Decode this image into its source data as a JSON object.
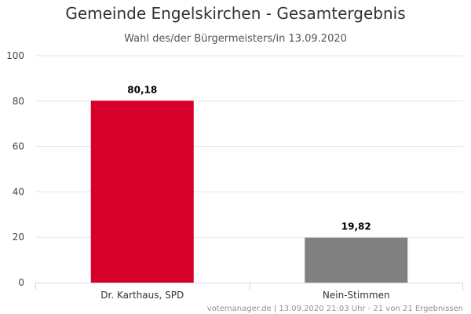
{
  "chart_data": {
    "type": "bar",
    "title": "Gemeinde Engelskirchen - Gesamtergebnis",
    "subtitle": "Wahl des/der Bürgermeisters/in 13.09.2020",
    "categories": [
      "Dr. Karthaus, SPD",
      "Nein-Stimmen"
    ],
    "values": [
      80.18,
      19.82
    ],
    "data_labels": [
      "80,18",
      "19,82"
    ],
    "colors": [
      "#d7002a",
      "#808080"
    ],
    "xlabel": "",
    "ylabel": "",
    "ylim": [
      0,
      100
    ],
    "yticks": [
      0,
      20,
      40,
      60,
      80,
      100
    ],
    "grid": true,
    "legend": "none"
  },
  "credit": "votemanager.de | 13.09.2020 21:03 Uhr - 21 von 21 Ergebnissen"
}
